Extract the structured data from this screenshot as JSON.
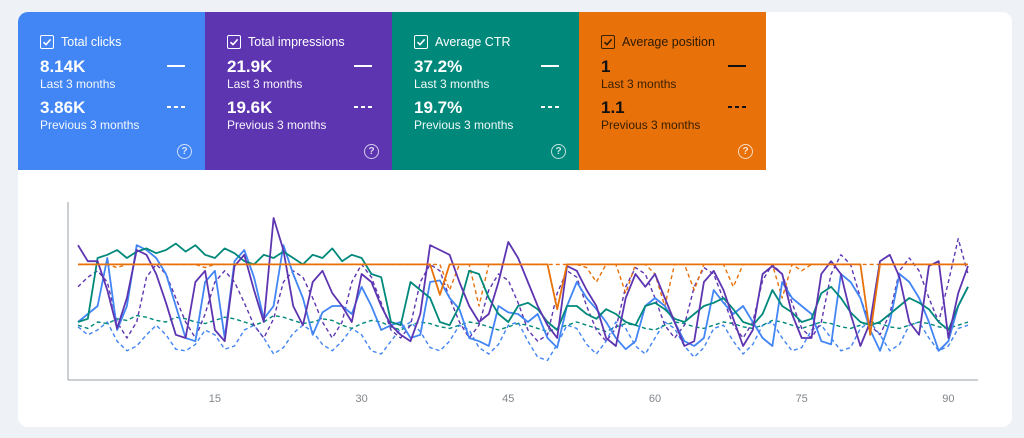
{
  "tiles": [
    {
      "id": "clicks",
      "title": "Total clicks",
      "color": "#4285f4",
      "current_value": "8.14K",
      "current_period": "Last 3 months",
      "previous_value": "3.86K",
      "previous_period": "Previous 3 months",
      "checked": true
    },
    {
      "id": "impressions",
      "title": "Total impressions",
      "color": "#5e35b1",
      "current_value": "21.9K",
      "current_period": "Last 3 months",
      "previous_value": "19.6K",
      "previous_period": "Previous 3 months",
      "checked": true
    },
    {
      "id": "ctr",
      "title": "Average CTR",
      "color": "#00897b",
      "current_value": "37.2%",
      "current_period": "Last 3 months",
      "previous_value": "19.7%",
      "previous_period": "Previous 3 months",
      "checked": true
    },
    {
      "id": "position",
      "title": "Average position",
      "color": "#e8710a",
      "current_value": "1",
      "current_period": "Last 3 months",
      "previous_value": "1.1",
      "previous_period": "Previous 3 months",
      "checked": true
    }
  ],
  "chart_data": {
    "type": "line",
    "x_ticks": [
      15,
      30,
      45,
      60,
      75,
      90
    ],
    "x_range": [
      1,
      92
    ],
    "grid": false,
    "series": [
      {
        "metric": "clicks",
        "period": "current",
        "color": "#4285f4",
        "dashed": false,
        "values": [
          0.3,
          0.35,
          0.4,
          0.7,
          0.25,
          0.4,
          0.78,
          0.75,
          0.7,
          0.6,
          0.4,
          0.2,
          0.18,
          0.55,
          0.62,
          0.2,
          0.68,
          0.75,
          0.58,
          0.32,
          0.4,
          0.78,
          0.6,
          0.45,
          0.22,
          0.36,
          0.4,
          0.4,
          0.35,
          0.52,
          0.4,
          0.25,
          0.28,
          0.3,
          0.2,
          0.22,
          0.55,
          0.56,
          0.45,
          0.38,
          0.2,
          0.18,
          0.15,
          0.4,
          0.36,
          0.35,
          0.3,
          0.35,
          0.2,
          0.14,
          0.4,
          0.55,
          0.45,
          0.38,
          0.3,
          0.2,
          0.13,
          0.18,
          0.4,
          0.45,
          0.4,
          0.3,
          0.18,
          0.15,
          0.2,
          0.5,
          0.42,
          0.35,
          0.4,
          0.3,
          0.2,
          0.15,
          0.55,
          0.45,
          0.4,
          0.35,
          0.18,
          0.16,
          0.6,
          0.55,
          0.45,
          0.25,
          0.12,
          0.3,
          0.6,
          0.55,
          0.45,
          0.3,
          0.12,
          0.18,
          0.4,
          0.52
        ]
      },
      {
        "metric": "clicks",
        "period": "previous",
        "color": "#4285f4",
        "dashed": true,
        "values": [
          0.27,
          0.22,
          0.25,
          0.3,
          0.18,
          0.12,
          0.15,
          0.22,
          0.28,
          0.22,
          0.13,
          0.12,
          0.16,
          0.25,
          0.22,
          0.13,
          0.15,
          0.25,
          0.28,
          0.2,
          0.1,
          0.14,
          0.23,
          0.28,
          0.24,
          0.16,
          0.12,
          0.18,
          0.26,
          0.22,
          0.12,
          0.1,
          0.18,
          0.26,
          0.3,
          0.24,
          0.14,
          0.12,
          0.18,
          0.28,
          0.25,
          0.14,
          0.1,
          0.16,
          0.28,
          0.3,
          0.18,
          0.08,
          0.06,
          0.16,
          0.28,
          0.26,
          0.16,
          0.1,
          0.18,
          0.3,
          0.26,
          0.15,
          0.1,
          0.2,
          0.3,
          0.26,
          0.15,
          0.08,
          0.14,
          0.26,
          0.28,
          0.18,
          0.1,
          0.16,
          0.28,
          0.3,
          0.2,
          0.12,
          0.14,
          0.25,
          0.28,
          0.2,
          0.12,
          0.14,
          0.26,
          0.3,
          0.22,
          0.12,
          0.16,
          0.28,
          0.3,
          0.2,
          0.12,
          0.15,
          0.26,
          0.28
        ]
      },
      {
        "metric": "ctr",
        "period": "current",
        "color": "#00897b",
        "dashed": false,
        "values": [
          0.3,
          0.32,
          0.7,
          0.72,
          0.75,
          0.7,
          0.74,
          0.76,
          0.73,
          0.75,
          0.79,
          0.74,
          0.78,
          0.72,
          0.7,
          0.76,
          0.73,
          0.68,
          0.66,
          0.72,
          0.7,
          0.74,
          0.7,
          0.66,
          0.72,
          0.7,
          0.76,
          0.68,
          0.72,
          0.7,
          0.6,
          0.58,
          0.3,
          0.28,
          0.55,
          0.5,
          0.45,
          0.3,
          0.28,
          0.4,
          0.62,
          0.6,
          0.45,
          0.35,
          0.3,
          0.4,
          0.42,
          0.38,
          0.3,
          0.25,
          0.4,
          0.4,
          0.35,
          0.32,
          0.38,
          0.35,
          0.3,
          0.28,
          0.4,
          0.42,
          0.38,
          0.32,
          0.3,
          0.35,
          0.4,
          0.42,
          0.45,
          0.38,
          0.3,
          0.28,
          0.35,
          0.5,
          0.4,
          0.36,
          0.3,
          0.32,
          0.48,
          0.52,
          0.45,
          0.36,
          0.3,
          0.28,
          0.3,
          0.35,
          0.4,
          0.45,
          0.42,
          0.38,
          0.3,
          0.25,
          0.4,
          0.52
        ]
      },
      {
        "metric": "ctr",
        "period": "previous",
        "color": "#00897b",
        "dashed": true,
        "values": [
          0.28,
          0.26,
          0.3,
          0.29,
          0.32,
          0.31,
          0.34,
          0.33,
          0.31,
          0.3,
          0.33,
          0.32,
          0.3,
          0.29,
          0.31,
          0.33,
          0.32,
          0.3,
          0.28,
          0.3,
          0.34,
          0.33,
          0.31,
          0.29,
          0.3,
          0.32,
          0.31,
          0.28,
          0.26,
          0.29,
          0.31,
          0.3,
          0.27,
          0.25,
          0.28,
          0.3,
          0.29,
          0.27,
          0.26,
          0.28,
          0.3,
          0.29,
          0.27,
          0.25,
          0.27,
          0.29,
          0.28,
          0.26,
          0.24,
          0.26,
          0.28,
          0.3,
          0.28,
          0.26,
          0.24,
          0.27,
          0.29,
          0.28,
          0.26,
          0.25,
          0.28,
          0.3,
          0.29,
          0.27,
          0.26,
          0.28,
          0.3,
          0.29,
          0.27,
          0.26,
          0.28,
          0.31,
          0.3,
          0.28,
          0.26,
          0.28,
          0.3,
          0.29,
          0.27,
          0.26,
          0.28,
          0.3,
          0.29,
          0.27,
          0.26,
          0.28,
          0.3,
          0.29,
          0.27,
          0.26,
          0.28,
          0.3
        ]
      },
      {
        "metric": "impressions",
        "period": "current",
        "color": "#5e35b1",
        "dashed": false,
        "values": [
          0.78,
          0.68,
          0.68,
          0.5,
          0.26,
          0.45,
          0.75,
          0.72,
          0.6,
          0.42,
          0.22,
          0.2,
          0.55,
          0.62,
          0.25,
          0.18,
          0.65,
          0.72,
          0.5,
          0.3,
          0.95,
          0.75,
          0.4,
          0.28,
          0.55,
          0.62,
          0.48,
          0.4,
          0.3,
          0.6,
          0.55,
          0.4,
          0.28,
          0.22,
          0.18,
          0.35,
          0.78,
          0.75,
          0.72,
          0.55,
          0.4,
          0.3,
          0.35,
          0.55,
          0.8,
          0.7,
          0.55,
          0.4,
          0.28,
          0.2,
          0.65,
          0.62,
          0.5,
          0.4,
          0.2,
          0.15,
          0.45,
          0.6,
          0.52,
          0.6,
          0.45,
          0.3,
          0.15,
          0.18,
          0.55,
          0.62,
          0.5,
          0.32,
          0.15,
          0.25,
          0.6,
          0.65,
          0.6,
          0.35,
          0.2,
          0.2,
          0.6,
          0.68,
          0.6,
          0.35,
          0.15,
          0.3,
          0.68,
          0.72,
          0.58,
          0.3,
          0.22,
          0.65,
          0.68,
          0.2,
          0.48,
          0.65
        ]
      },
      {
        "metric": "impressions",
        "period": "previous",
        "color": "#5e35b1",
        "dashed": true,
        "values": [
          0.52,
          0.58,
          0.62,
          0.55,
          0.3,
          0.2,
          0.3,
          0.58,
          0.66,
          0.6,
          0.45,
          0.3,
          0.2,
          0.35,
          0.55,
          0.62,
          0.55,
          0.42,
          0.28,
          0.2,
          0.32,
          0.55,
          0.62,
          0.58,
          0.45,
          0.3,
          0.2,
          0.3,
          0.55,
          0.66,
          0.58,
          0.42,
          0.25,
          0.2,
          0.28,
          0.55,
          0.66,
          0.62,
          0.45,
          0.3,
          0.2,
          0.28,
          0.5,
          0.6,
          0.56,
          0.42,
          0.25,
          0.18,
          0.22,
          0.48,
          0.62,
          0.58,
          0.4,
          0.25,
          0.18,
          0.26,
          0.52,
          0.64,
          0.6,
          0.45,
          0.28,
          0.2,
          0.28,
          0.52,
          0.64,
          0.6,
          0.44,
          0.28,
          0.2,
          0.3,
          0.56,
          0.66,
          0.6,
          0.42,
          0.26,
          0.2,
          0.3,
          0.6,
          0.72,
          0.66,
          0.45,
          0.28,
          0.22,
          0.35,
          0.62,
          0.7,
          0.62,
          0.45,
          0.3,
          0.55,
          0.82,
          0.6
        ]
      },
      {
        "metric": "position",
        "period": "current",
        "color": "#e8710a",
        "dashed": false,
        "values": [
          0.66,
          0.66,
          0.66,
          0.66,
          0.66,
          0.66,
          0.66,
          0.66,
          0.66,
          0.66,
          0.66,
          0.66,
          0.66,
          0.66,
          0.66,
          0.66,
          0.66,
          0.66,
          0.66,
          0.66,
          0.66,
          0.66,
          0.66,
          0.66,
          0.66,
          0.66,
          0.66,
          0.66,
          0.66,
          0.66,
          0.66,
          0.66,
          0.66,
          0.66,
          0.66,
          0.66,
          0.66,
          0.47,
          0.66,
          0.66,
          0.66,
          0.66,
          0.66,
          0.66,
          0.66,
          0.66,
          0.66,
          0.66,
          0.66,
          0.38,
          0.66,
          0.66,
          0.66,
          0.66,
          0.66,
          0.66,
          0.66,
          0.66,
          0.66,
          0.66,
          0.66,
          0.66,
          0.66,
          0.66,
          0.66,
          0.66,
          0.66,
          0.66,
          0.66,
          0.66,
          0.66,
          0.66,
          0.66,
          0.66,
          0.66,
          0.66,
          0.66,
          0.66,
          0.66,
          0.66,
          0.66,
          0.22,
          0.66,
          0.66,
          0.66,
          0.66,
          0.66,
          0.66,
          0.66,
          0.66,
          0.66,
          0.66
        ]
      },
      {
        "metric": "position",
        "period": "previous",
        "color": "#e8710a",
        "dashed": true,
        "values": [
          0.66,
          0.66,
          0.66,
          0.66,
          0.64,
          0.66,
          0.66,
          0.66,
          0.66,
          0.66,
          0.66,
          0.66,
          0.66,
          0.64,
          0.66,
          0.66,
          0.66,
          0.66,
          0.66,
          0.66,
          0.66,
          0.66,
          0.66,
          0.66,
          0.66,
          0.66,
          0.66,
          0.66,
          0.66,
          0.66,
          0.66,
          0.66,
          0.66,
          0.66,
          0.66,
          0.66,
          0.66,
          0.66,
          0.5,
          0.66,
          0.66,
          0.4,
          0.66,
          0.66,
          0.66,
          0.66,
          0.66,
          0.66,
          0.66,
          0.66,
          0.66,
          0.66,
          0.64,
          0.55,
          0.66,
          0.66,
          0.48,
          0.66,
          0.66,
          0.6,
          0.4,
          0.66,
          0.66,
          0.5,
          0.66,
          0.66,
          0.66,
          0.52,
          0.66,
          0.66,
          0.66,
          0.66,
          0.45,
          0.66,
          0.62,
          0.66,
          0.66,
          0.66,
          0.66,
          0.66,
          0.66,
          0.66,
          0.66,
          0.66,
          0.66,
          0.66,
          0.66,
          0.66,
          0.66,
          0.66,
          0.66,
          0.66
        ]
      }
    ]
  }
}
